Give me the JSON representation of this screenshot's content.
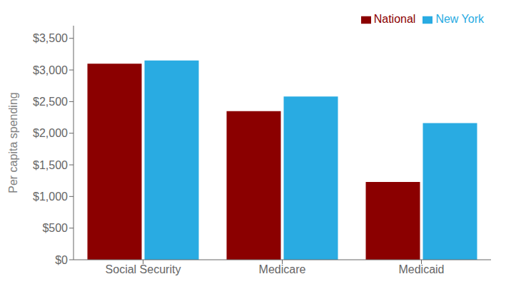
{
  "chart_data": {
    "type": "bar",
    "ylabel": "Per capita spending",
    "categories": [
      "Social Security",
      "Medicare",
      "Medicaid"
    ],
    "series": [
      {
        "name": "National",
        "color": "#8B0000",
        "values": [
          3100,
          2350,
          1230
        ]
      },
      {
        "name": "New York",
        "color": "#29ABE2",
        "values": [
          3150,
          2580,
          2160
        ]
      }
    ],
    "ylim": [
      0,
      3700
    ],
    "yticks": [
      {
        "value": 0,
        "label": "$0"
      },
      {
        "value": 500,
        "label": "$500"
      },
      {
        "value": 1000,
        "label": "$1,000"
      },
      {
        "value": 1500,
        "label": "$1,500"
      },
      {
        "value": 2000,
        "label": "$2,000"
      },
      {
        "value": 2500,
        "label": "$2,500"
      },
      {
        "value": 3000,
        "label": "$3,000"
      },
      {
        "value": 3500,
        "label": "$3,500"
      }
    ],
    "legend": "upper right",
    "grid": false
  }
}
